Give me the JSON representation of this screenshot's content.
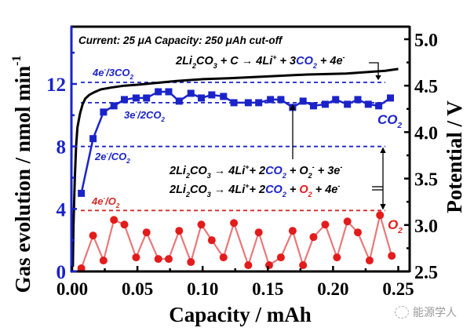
{
  "chart_data": {
    "type": "line",
    "title": "",
    "xlabel": "Capacity / mAh",
    "ylabel_left": "Gas evolution / nmol min",
    "ylabel_left_superscript": "-1",
    "ylabel_right": "Potential / V",
    "xlim": [
      0.0,
      0.255
    ],
    "ylim_left": [
      0,
      15.5
    ],
    "ylim_right": [
      2.5,
      5.2
    ],
    "x_ticks": [
      "0.00",
      "0.05",
      "0.10",
      "0.15",
      "0.20",
      "0.25"
    ],
    "x_tick_values": [
      0.0,
      0.05,
      0.1,
      0.15,
      0.2,
      0.25
    ],
    "y_left_ticks": [
      "0",
      "4",
      "8",
      "12"
    ],
    "y_left_tick_values": [
      0,
      4,
      8,
      12
    ],
    "y_right_ticks": [
      "2.5",
      "3.0",
      "3.5",
      "4.0",
      "4.5",
      "5.0"
    ],
    "y_right_tick_values": [
      2.5,
      3.0,
      3.5,
      4.0,
      4.5,
      5.0
    ],
    "series": [
      {
        "name": "CO2",
        "label": "CO",
        "label_sub": "2",
        "axis": "left",
        "marker": "square",
        "color": "#1a23c8",
        "x": [
          0.007,
          0.016,
          0.024,
          0.032,
          0.04,
          0.049,
          0.057,
          0.066,
          0.074,
          0.082,
          0.091,
          0.099,
          0.107,
          0.116,
          0.124,
          0.135,
          0.143,
          0.152,
          0.16,
          0.169,
          0.177,
          0.185,
          0.194,
          0.202,
          0.211,
          0.219,
          0.227,
          0.235,
          0.244
        ],
        "values": [
          5.0,
          8.5,
          10.2,
          10.6,
          11.0,
          11.1,
          11.1,
          11.5,
          11.5,
          10.9,
          11.4,
          11.1,
          11.3,
          11.2,
          10.8,
          10.8,
          10.8,
          11.0,
          11.0,
          10.5,
          10.9,
          10.6,
          10.7,
          11.0,
          10.7,
          11.0,
          10.7,
          10.6,
          11.1
        ]
      },
      {
        "name": "O2",
        "label": "O",
        "label_sub": "2",
        "axis": "left",
        "marker": "circle",
        "color": "#e31b1b",
        "line_color": "#e8787a",
        "x": [
          0.007,
          0.016,
          0.024,
          0.032,
          0.04,
          0.049,
          0.057,
          0.066,
          0.074,
          0.082,
          0.091,
          0.099,
          0.107,
          0.116,
          0.124,
          0.135,
          0.143,
          0.151,
          0.16,
          0.169,
          0.177,
          0.185,
          0.194,
          0.203,
          0.211,
          0.219,
          0.228,
          0.236,
          0.245
        ],
        "values": [
          0.2,
          2.3,
          0.7,
          3.3,
          3.0,
          0.9,
          2.5,
          0.8,
          0.8,
          2.6,
          0.6,
          3.0,
          2.0,
          0.9,
          3.1,
          0.4,
          2.5,
          0.4,
          0.9,
          2.6,
          0.4,
          2.2,
          3.0,
          0.9,
          3.2,
          2.5,
          0.7,
          3.6,
          1.0
        ]
      },
      {
        "name": "Potential",
        "axis": "right",
        "marker": "none",
        "color": "#000000",
        "x": [
          0.0005,
          0.001,
          0.002,
          0.003,
          0.004,
          0.006,
          0.008,
          0.01,
          0.013,
          0.017,
          0.022,
          0.03,
          0.04,
          0.05,
          0.065,
          0.08,
          0.1,
          0.12,
          0.15,
          0.18,
          0.21,
          0.24,
          0.25
        ],
        "values": [
          2.55,
          3.0,
          3.5,
          3.85,
          4.05,
          4.2,
          4.3,
          4.36,
          4.4,
          4.43,
          4.46,
          4.48,
          4.5,
          4.51,
          4.53,
          4.55,
          4.57,
          4.58,
          4.6,
          4.62,
          4.63,
          4.66,
          4.68
        ]
      }
    ],
    "reference_lines": [
      {
        "label": "4e",
        "label_sup": "-",
        "label_rest": "/3CO",
        "label_sub": "2",
        "value": 12.1,
        "color": "#1a23c8"
      },
      {
        "label": "3e",
        "label_sup": "-",
        "label_rest": "/2CO",
        "label_sub": "2",
        "value": 10.8,
        "color": "#1a23c8"
      },
      {
        "label": "2e",
        "label_sup": "-",
        "label_rest": "/CO",
        "label_sub": "2",
        "value": 8.0,
        "color": "#1a23c8"
      },
      {
        "label": "4e",
        "label_sup": "-",
        "label_rest": "/O",
        "label_sub": "2",
        "value": 3.9,
        "color": "#d42a2a"
      }
    ],
    "annotations": {
      "conditions": "Current: 25 μA  Capacity: 250 μAh cut-off",
      "reaction_1": {
        "p1": "2Li",
        "s1": "2",
        "p2": "CO",
        "s2": "3",
        "p3": " + C → 4Li",
        "sup1": "+",
        "p4": " + 3",
        "co": "CO",
        "s3": "2",
        "p5": " + 4e",
        "sup2": "-"
      },
      "reaction_2": {
        "p1": "2Li",
        "s1": "2",
        "p2": "CO",
        "s2": "3",
        "p3": " → 4Li",
        "sup1": "+",
        "p4": "+ 2",
        "co": "CO",
        "s3": "2",
        "p5": " + O",
        "s4": "2",
        "sup3": "-",
        "p6": " + 3e",
        "sup2": "-"
      },
      "reaction_3": {
        "p1": "2Li",
        "s1": "2",
        "p2": "CO",
        "s2": "3",
        "p3": " → 4Li",
        "sup1": "+",
        "p4": "+ 2",
        "co": "CO",
        "s3": "2",
        "p5": " + ",
        "o": "O",
        "s4": "2",
        "p6": " + 4e",
        "sup2": "-"
      }
    },
    "colors": {
      "blue": "#1a23c8",
      "red": "#e31b1b",
      "axis_left": "#1a23c8",
      "black": "#000000"
    }
  },
  "watermark": "能源学人"
}
